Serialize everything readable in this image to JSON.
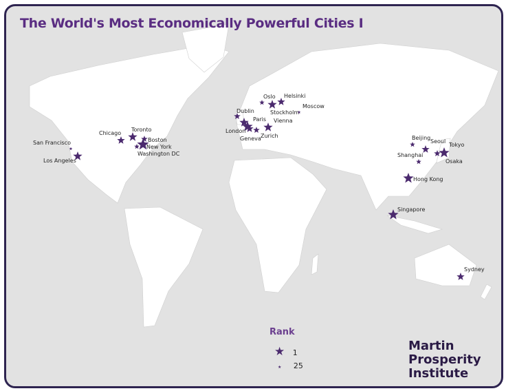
{
  "title": "The World's Most Economically Powerful Cities I",
  "colors": {
    "accent": "#5a2d82",
    "star": "#4b2a6e",
    "land": "#ffffff",
    "water": "#e2e2e2",
    "border": "#2e2450"
  },
  "cities": [
    "Tokyo",
    "Osaka",
    "Seoul",
    "Beijing",
    "Shanghai",
    "Hong Kong",
    "Singapore",
    "Sydney",
    "New York",
    "Boston",
    "Washington DC",
    "Toronto",
    "Chicago",
    "San Francisco",
    "Los Angeles",
    "London",
    "Dublin",
    "Paris",
    "Geneva",
    "Zurich",
    "Vienna",
    "Oslo",
    "Stockholm",
    "Helsinki",
    "Moscow"
  ],
  "legend": {
    "title": "Rank",
    "max_label": "1",
    "min_label": "25"
  },
  "brand": {
    "line1": "Martin",
    "line2": "Prosperity",
    "line3": "Institute"
  }
}
